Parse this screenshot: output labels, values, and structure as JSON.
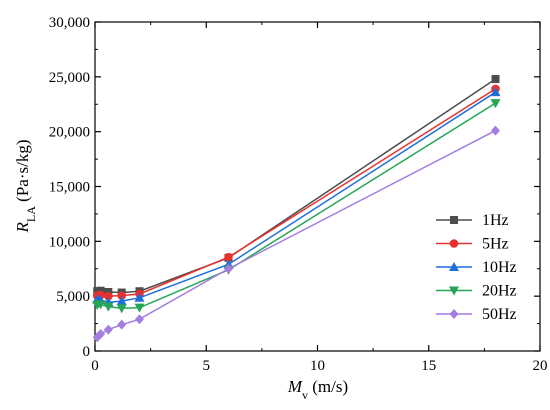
{
  "chart_data": {
    "type": "line",
    "xlabel": {
      "main": "M",
      "sub": "v",
      "unit": " (m/s)"
    },
    "ylabel": {
      "main": "R",
      "sub": "LA",
      "unit": " (Pa·s/kg)"
    },
    "xlim": [
      0,
      20
    ],
    "ylim": [
      0,
      30000
    ],
    "xticks": [
      0,
      5,
      10,
      15,
      20
    ],
    "yticks": [
      0,
      5000,
      10000,
      15000,
      20000,
      25000,
      30000
    ],
    "xtick_labels": [
      "0",
      "5",
      "10",
      "15",
      "20"
    ],
    "ytick_labels": [
      "0",
      "5,000",
      "10,000",
      "15,000",
      "20,000",
      "25,000",
      "30,000"
    ],
    "grid": false,
    "legend_position": "right-middle",
    "series": [
      {
        "name": "1Hz",
        "color": "#4d4d4d",
        "marker": "square",
        "x": [
          0.1,
          0.25,
          0.6,
          1.2,
          2.0,
          6.0,
          18.0
        ],
        "y": [
          5450,
          5500,
          5380,
          5330,
          5450,
          8500,
          24800
        ]
      },
      {
        "name": "5Hz",
        "color": "#e8312f",
        "marker": "circle",
        "x": [
          0.1,
          0.25,
          0.6,
          1.2,
          2.0,
          6.0,
          18.0
        ],
        "y": [
          5050,
          5100,
          5000,
          5050,
          5200,
          8550,
          23900
        ]
      },
      {
        "name": "10Hz",
        "color": "#1f6fdb",
        "marker": "triangle-up",
        "x": [
          0.1,
          0.25,
          0.6,
          1.2,
          2.0,
          6.0,
          18.0
        ],
        "y": [
          4700,
          4650,
          4450,
          4550,
          4850,
          7900,
          23600
        ]
      },
      {
        "name": "20Hz",
        "color": "#25a654",
        "marker": "triangle-down",
        "x": [
          0.1,
          0.25,
          0.6,
          1.2,
          2.0,
          6.0,
          18.0
        ],
        "y": [
          4200,
          4250,
          4050,
          3900,
          3950,
          7400,
          22600
        ]
      },
      {
        "name": "50Hz",
        "color": "#a57ce0",
        "marker": "diamond",
        "x": [
          0.1,
          0.25,
          0.6,
          1.2,
          2.0,
          6.0,
          18.0
        ],
        "y": [
          1250,
          1550,
          1950,
          2400,
          2900,
          7500,
          20100
        ]
      }
    ]
  }
}
